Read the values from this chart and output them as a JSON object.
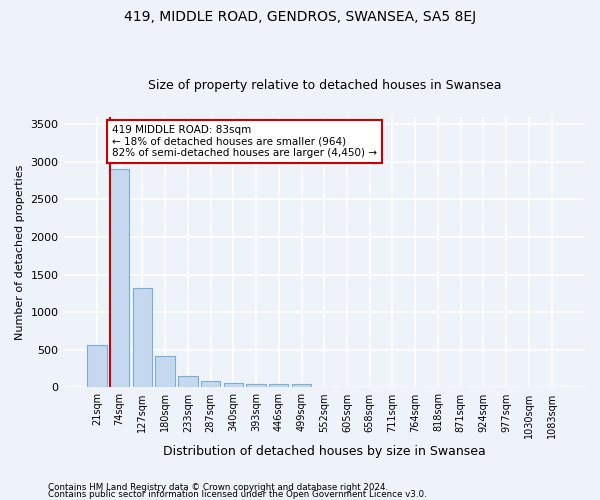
{
  "title": "419, MIDDLE ROAD, GENDROS, SWANSEA, SA5 8EJ",
  "subtitle": "Size of property relative to detached houses in Swansea",
  "xlabel": "Distribution of detached houses by size in Swansea",
  "ylabel": "Number of detached properties",
  "footnote1": "Contains HM Land Registry data © Crown copyright and database right 2024.",
  "footnote2": "Contains public sector information licensed under the Open Government Licence v3.0.",
  "bar_labels": [
    "21sqm",
    "74sqm",
    "127sqm",
    "180sqm",
    "233sqm",
    "287sqm",
    "340sqm",
    "393sqm",
    "446sqm",
    "499sqm",
    "552sqm",
    "605sqm",
    "658sqm",
    "711sqm",
    "764sqm",
    "818sqm",
    "871sqm",
    "924sqm",
    "977sqm",
    "1030sqm",
    "1083sqm"
  ],
  "bar_values": [
    570,
    2900,
    1320,
    415,
    155,
    80,
    55,
    50,
    45,
    40,
    0,
    0,
    0,
    0,
    0,
    0,
    0,
    0,
    0,
    0,
    0
  ],
  "bar_color": "#c5d8f0",
  "bar_edge_color": "#7aafd4",
  "ylim": [
    0,
    3600
  ],
  "yticks": [
    0,
    500,
    1000,
    1500,
    2000,
    2500,
    3000,
    3500
  ],
  "property_line_color": "#cc0000",
  "annotation_line1": "419 MIDDLE ROAD: 83sqm",
  "annotation_line2": "← 18% of detached houses are smaller (964)",
  "annotation_line3": "82% of semi-detached houses are larger (4,450) →",
  "annotation_box_color": "#ffffff",
  "annotation_border_color": "#cc0000",
  "bg_color": "#eef2f9",
  "grid_color": "#ffffff",
  "title_fontsize": 10,
  "subtitle_fontsize": 9,
  "annotation_fontsize": 7.5,
  "tick_fontsize": 7,
  "ylabel_fontsize": 8,
  "xlabel_fontsize": 9
}
